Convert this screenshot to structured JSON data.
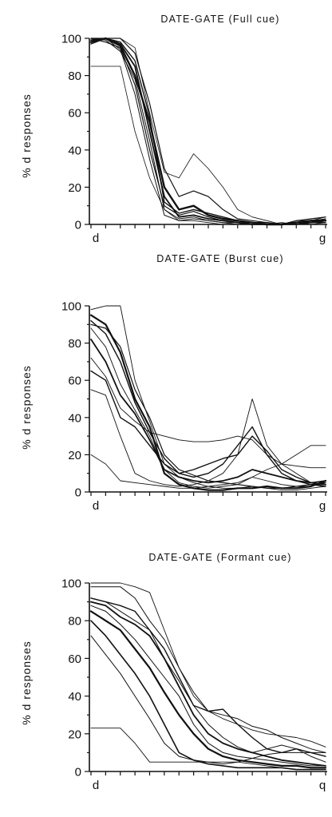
{
  "chart_data": [
    {
      "type": "line",
      "title": "DATE-GATE (Full cue)",
      "ylabel": "% d responses",
      "x": [
        1,
        2,
        3,
        4,
        5,
        6,
        7,
        8,
        9,
        10,
        11,
        12,
        13,
        14,
        15,
        16,
        17
      ],
      "xtick_labels": [
        "d",
        "g"
      ],
      "yticks": [
        0,
        20,
        40,
        60,
        80,
        100
      ],
      "ylim": [
        0,
        100
      ],
      "series": [
        {
          "values": [
            85,
            85,
            85,
            50,
            25,
            8,
            2,
            2,
            1,
            0,
            0,
            1,
            0,
            0,
            1,
            2,
            3
          ],
          "weight": 0.8
        },
        {
          "values": [
            100,
            100,
            100,
            95,
            60,
            28,
            25,
            38,
            30,
            20,
            8,
            4,
            2,
            0,
            1,
            0,
            1
          ],
          "weight": 0.8
        },
        {
          "values": [
            100,
            100,
            100,
            92,
            65,
            30,
            15,
            18,
            15,
            8,
            3,
            2,
            1,
            0,
            2,
            3,
            4
          ],
          "weight": 1.2
        },
        {
          "values": [
            98,
            100,
            96,
            80,
            55,
            20,
            8,
            10,
            5,
            3,
            2,
            1,
            0,
            0,
            1,
            2,
            2
          ],
          "weight": 2.4
        },
        {
          "values": [
            100,
            98,
            95,
            75,
            40,
            10,
            5,
            7,
            4,
            2,
            1,
            1,
            0,
            0,
            0,
            1,
            3
          ],
          "weight": 1.2
        },
        {
          "values": [
            99,
            100,
            97,
            85,
            50,
            15,
            4,
            5,
            3,
            2,
            1,
            0,
            0,
            0,
            1,
            1,
            2
          ],
          "weight": 1.8
        },
        {
          "values": [
            100,
            100,
            94,
            70,
            35,
            5,
            2,
            3,
            2,
            1,
            0,
            0,
            0,
            1,
            0,
            2,
            4
          ],
          "weight": 1.0
        },
        {
          "values": [
            97,
            100,
            98,
            88,
            58,
            12,
            6,
            8,
            6,
            4,
            2,
            1,
            1,
            0,
            0,
            1,
            1
          ],
          "weight": 1.4
        },
        {
          "values": [
            100,
            99,
            93,
            78,
            45,
            8,
            3,
            4,
            2,
            1,
            1,
            0,
            0,
            0,
            2,
            2,
            1
          ],
          "weight": 1.0
        }
      ]
    },
    {
      "type": "line",
      "title": "DATE-GATE (Burst cue)",
      "ylabel": "% d responses",
      "x": [
        1,
        2,
        3,
        4,
        5,
        6,
        7,
        8,
        9,
        10,
        11,
        12,
        13,
        14,
        15,
        16,
        17
      ],
      "xtick_labels": [
        "d",
        "g"
      ],
      "yticks": [
        0,
        20,
        40,
        60,
        80,
        100
      ],
      "ylim": [
        0,
        100
      ],
      "series": [
        {
          "values": [
            20,
            15,
            6,
            5,
            4,
            3,
            2,
            2,
            3,
            4,
            5,
            8,
            6,
            4,
            3,
            3,
            5
          ],
          "weight": 0.9
        },
        {
          "values": [
            55,
            52,
            30,
            10,
            6,
            4,
            3,
            4,
            6,
            10,
            20,
            50,
            25,
            15,
            10,
            5,
            3
          ],
          "weight": 0.9
        },
        {
          "values": [
            65,
            60,
            40,
            35,
            25,
            15,
            10,
            8,
            10,
            15,
            25,
            35,
            20,
            10,
            6,
            4,
            3
          ],
          "weight": 1.4
        },
        {
          "values": [
            72,
            62,
            45,
            38,
            32,
            30,
            28,
            27,
            27,
            28,
            30,
            28,
            20,
            15,
            14,
            13,
            13
          ],
          "weight": 0.9
        },
        {
          "values": [
            82,
            70,
            52,
            42,
            28,
            12,
            8,
            6,
            5,
            6,
            8,
            12,
            10,
            8,
            6,
            5,
            4
          ],
          "weight": 1.8
        },
        {
          "values": [
            88,
            78,
            58,
            44,
            30,
            12,
            5,
            3,
            2,
            3,
            4,
            8,
            12,
            15,
            20,
            25,
            25
          ],
          "weight": 0.9
        },
        {
          "values": [
            92,
            85,
            70,
            48,
            32,
            18,
            10,
            12,
            15,
            18,
            20,
            30,
            22,
            12,
            8,
            5,
            6
          ],
          "weight": 1.4
        },
        {
          "values": [
            98,
            100,
            100,
            60,
            38,
            15,
            8,
            5,
            3,
            2,
            2,
            3,
            2,
            1,
            1,
            2,
            3
          ],
          "weight": 0.9
        },
        {
          "values": [
            95,
            90,
            75,
            50,
            35,
            10,
            4,
            2,
            1,
            1,
            2,
            2,
            3,
            2,
            2,
            3,
            6
          ],
          "weight": 2.2
        },
        {
          "values": [
            90,
            88,
            78,
            55,
            40,
            20,
            12,
            9,
            6,
            5,
            4,
            3,
            2,
            2,
            3,
            4,
            5
          ],
          "weight": 1.2
        }
      ]
    },
    {
      "type": "line",
      "title": "DATE-GATE (Formant cue)",
      "ylabel": "% d responses",
      "x": [
        1,
        2,
        3,
        4,
        5,
        6,
        7,
        8,
        9,
        10,
        11,
        12,
        13,
        14,
        15,
        16,
        17
      ],
      "xtick_labels": [
        "d",
        "q"
      ],
      "yticks": [
        0,
        20,
        40,
        60,
        80,
        100
      ],
      "ylim": [
        0,
        100
      ],
      "series": [
        {
          "values": [
            23,
            23,
            23,
            15,
            5,
            5,
            5,
            5,
            5,
            5,
            5,
            4,
            3,
            2,
            1,
            1,
            1
          ],
          "weight": 0.9
        },
        {
          "values": [
            100,
            100,
            100,
            98,
            95,
            75,
            55,
            40,
            32,
            28,
            25,
            22,
            20,
            19,
            18,
            16,
            13
          ],
          "weight": 0.9
        },
        {
          "values": [
            98,
            98,
            98,
            92,
            80,
            70,
            55,
            42,
            32,
            30,
            28,
            24,
            22,
            18,
            15,
            12,
            10
          ],
          "weight": 1.0
        },
        {
          "values": [
            92,
            90,
            88,
            85,
            75,
            65,
            50,
            35,
            32,
            33,
            25,
            18,
            12,
            10,
            12,
            10,
            8
          ],
          "weight": 1.4
        },
        {
          "values": [
            90,
            88,
            82,
            78,
            72,
            60,
            45,
            30,
            20,
            15,
            12,
            10,
            8,
            6,
            5,
            4,
            3
          ],
          "weight": 1.8
        },
        {
          "values": [
            88,
            85,
            78,
            70,
            60,
            50,
            40,
            25,
            15,
            10,
            8,
            7,
            6,
            5,
            4,
            3,
            3
          ],
          "weight": 1.0
        },
        {
          "values": [
            85,
            80,
            75,
            65,
            55,
            42,
            30,
            20,
            12,
            8,
            6,
            5,
            4,
            3,
            3,
            2,
            2
          ],
          "weight": 2.2
        },
        {
          "values": [
            92,
            90,
            85,
            80,
            75,
            60,
            48,
            35,
            25,
            18,
            13,
            10,
            12,
            14,
            12,
            8,
            5
          ],
          "weight": 1.0
        },
        {
          "values": [
            80,
            72,
            62,
            52,
            40,
            25,
            10,
            6,
            4,
            3,
            2,
            2,
            2,
            2,
            1,
            1,
            1
          ],
          "weight": 1.6
        },
        {
          "values": [
            72,
            62,
            52,
            40,
            28,
            15,
            8,
            6,
            5,
            4,
            5,
            7,
            9,
            10,
            10,
            10,
            10
          ],
          "weight": 1.0
        }
      ]
    }
  ]
}
